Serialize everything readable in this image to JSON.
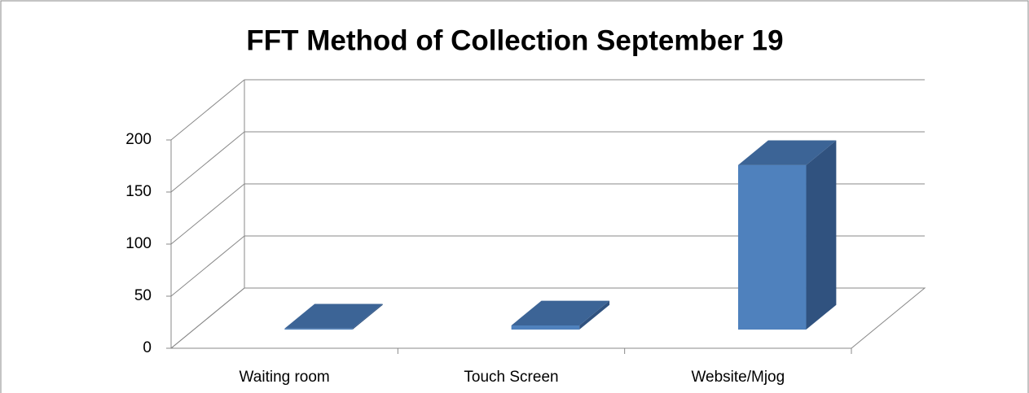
{
  "chart_data": {
    "type": "bar3d",
    "title": "FFT Method of Collection September 19",
    "categories": [
      "Waiting room",
      "Touch Screen",
      "Website/Mjog"
    ],
    "values": [
      1,
      4,
      158
    ],
    "color": "#4f81bd",
    "ylim": [
      0,
      200
    ],
    "yticks": [
      0,
      50,
      100,
      150,
      200
    ],
    "grid": true
  }
}
